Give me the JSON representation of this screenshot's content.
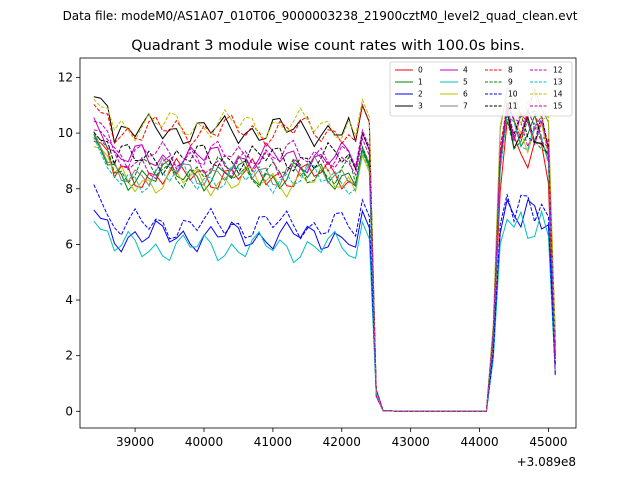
{
  "chart_data": {
    "type": "line",
    "suptitle": "Data file: modeM0/AS1A07_010T06_9000003238_21900cztM0_level2_quad_clean.evt",
    "title": "Quadrant 3 module wise count rates with 100.0s bins.",
    "xlabel": "",
    "ylabel": "",
    "x_offset_label": "+3.089e8",
    "xlim": [
      38200,
      45400
    ],
    "ylim": [
      -0.6,
      12.7
    ],
    "xticks": [
      39000,
      40000,
      41000,
      42000,
      43000,
      44000,
      45000
    ],
    "xtick_labels": [
      "39000",
      "40000",
      "41000",
      "42000",
      "43000",
      "44000",
      "45000"
    ],
    "yticks": [
      0,
      2,
      4,
      6,
      8,
      10,
      12
    ],
    "ytick_labels": [
      "0",
      "2",
      "4",
      "6",
      "8",
      "10",
      "12"
    ],
    "grid": false,
    "legend": {
      "position": "top-right",
      "ncol": 4
    },
    "seg1_x": [
      38400,
      38500,
      38600,
      38700,
      38800,
      38900,
      39000,
      39100,
      39200,
      39300,
      39400,
      39500,
      39600,
      39700,
      39800,
      39900,
      40000,
      40100,
      40200,
      40300,
      40400,
      40500,
      40600,
      40700,
      40800,
      40900,
      41000,
      41100,
      41200,
      41300,
      41400,
      41500,
      41600,
      41700,
      41800,
      41900,
      42000,
      42100,
      42200,
      42300,
      42400,
      42500,
      42600,
      42700
    ],
    "seg2_x": [
      44100,
      44200,
      44300,
      44400,
      44500,
      44600,
      44700,
      44800,
      44900,
      45000,
      45100
    ],
    "series": [
      {
        "name": "0",
        "color": "#ff0000",
        "dash": "solid",
        "base": 8.5,
        "peak": 10.4,
        "post": 8.2
      },
      {
        "name": "1",
        "color": "#008000",
        "dash": "solid",
        "base": 8.5,
        "peak": 11.1,
        "post": 9.0
      },
      {
        "name": "2",
        "color": "#0000ff",
        "dash": "solid",
        "base": 6.3,
        "peak": 7.6,
        "post": 6.7
      },
      {
        "name": "3",
        "color": "#000000",
        "dash": "solid",
        "base": 10.1,
        "peak": 10.8,
        "post": 9.2
      },
      {
        "name": "4",
        "color": "#bf00bf",
        "dash": "solid",
        "base": 9.1,
        "peak": 10.9,
        "post": 9.5
      },
      {
        "name": "5",
        "color": "#00bfbf",
        "dash": "solid",
        "base": 5.9,
        "peak": 6.9,
        "post": 6.3
      },
      {
        "name": "6",
        "color": "#bfbf00",
        "dash": "solid",
        "base": 8.3,
        "peak": 10.6,
        "post": 9.2
      },
      {
        "name": "7",
        "color": "#808080",
        "dash": "solid",
        "base": 8.6,
        "peak": 11.6,
        "post": 10.4
      },
      {
        "name": "8",
        "color": "#ff0000",
        "dash": "dashed",
        "base": 10.1,
        "peak": 11.0,
        "post": 9.8
      },
      {
        "name": "9",
        "color": "#008000",
        "dash": "dashed",
        "base": 8.6,
        "peak": 10.5,
        "post": 9.3
      },
      {
        "name": "10",
        "color": "#0000ff",
        "dash": "dashed",
        "base": 6.7,
        "peak": 7.8,
        "post": 7.0
      },
      {
        "name": "11",
        "color": "#000000",
        "dash": "dashed",
        "base": 9.1,
        "peak": 10.7,
        "post": 9.5
      },
      {
        "name": "12",
        "color": "#bf00bf",
        "dash": "dashed",
        "base": 8.9,
        "peak": 10.9,
        "post": 9.3
      },
      {
        "name": "13",
        "color": "#00bfbf",
        "dash": "dashed",
        "base": 8.4,
        "peak": 10.7,
        "post": 8.9
      },
      {
        "name": "14",
        "color": "#bfbf00",
        "dash": "dashed",
        "base": 10.3,
        "peak": 11.3,
        "post": 10.6
      },
      {
        "name": "15",
        "color": "#bf00bf",
        "dash": "dashed",
        "base": 9.2,
        "peak": 11.0,
        "post": 9.5
      }
    ]
  }
}
